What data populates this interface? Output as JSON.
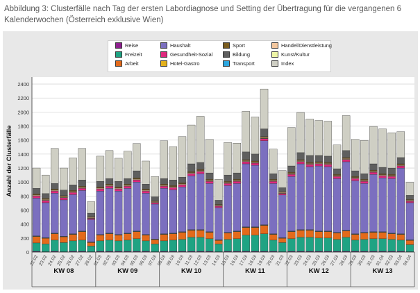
{
  "caption": "Abbildung 3: Clusterfälle nach Tag der ersten Labordiagnose und Setting der Übertragung für die vergangenen 6 Kalenderwochen (Österreich exklusive Wien)",
  "colors": {
    "Reise": "#8e1f8e",
    "Freizeit": "#1fa383",
    "Arbeit": "#e36a1b",
    "Haushalt": "#7b6fbf",
    "Gesundheit-Sozial": "#e0287d",
    "Hotel-Gastro": "#e3b11b",
    "Sport": "#7a5c1e",
    "Bildung": "#5f5f5f",
    "Transport": "#2ca7e0",
    "Handel/Dienstleistung": "#f3c79e",
    "Kunst/Kultur": "#eef5a6",
    "Index": "#cfcfc4"
  },
  "chart_data": {
    "type": "bar",
    "stacked": true,
    "ylabel": "Anzahl der Clusterfälle",
    "xlabel": "",
    "ylim": [
      0,
      2500
    ],
    "yticks": [
      0,
      200,
      400,
      600,
      800,
      1000,
      1200,
      1400,
      1600,
      1800,
      2000,
      2200,
      2400
    ],
    "legend_position": "top-center",
    "legend": [
      "Reise",
      "Haushalt",
      "Sport",
      "Handel/Dienstleistung",
      "Freizeit",
      "Gesundheit-Sozial",
      "Bildung",
      "Kunst/Kultur",
      "Arbeit",
      "Hotel-Gastro",
      "Transport",
      "Index"
    ],
    "stack_order": [
      "Reise",
      "Freizeit",
      "Arbeit",
      "Hotel-Gastro",
      "Transport",
      "Haushalt",
      "Gesundheit-Sozial",
      "Kunst/Kultur",
      "Handel/Dienstleistung",
      "Sport",
      "Bildung",
      "Index"
    ],
    "categories": [
      "22.02",
      "23.02",
      "24.02",
      "25.02",
      "26.02",
      "27.02",
      "28.02",
      "01.03",
      "02.03",
      "03.03",
      "04.03",
      "05.03",
      "06.03",
      "07.03",
      "08.03",
      "09.03",
      "10.03",
      "11.03",
      "12.03",
      "13.03",
      "14.03",
      "15.03",
      "16.03",
      "17.03",
      "18.03",
      "19.03",
      "20.03",
      "21.03",
      "22.03",
      "23.03",
      "24.03",
      "25.03",
      "26.03",
      "27.03",
      "28.03",
      "29.03",
      "30.03",
      "31.03",
      "01.04",
      "02.03",
      "03.04",
      "04.04"
    ],
    "weeks": [
      {
        "label": "KW 08",
        "start": 0,
        "end": 6
      },
      {
        "label": "KW 09",
        "start": 7,
        "end": 13
      },
      {
        "label": "KW 10",
        "start": 14,
        "end": 20
      },
      {
        "label": "KW 11",
        "start": 21,
        "end": 27
      },
      {
        "label": "KW 12",
        "start": 28,
        "end": 34
      },
      {
        "label": "KW 13",
        "start": 35,
        "end": 41
      }
    ],
    "series": [
      {
        "name": "Reise",
        "values": [
          10,
          5,
          10,
          5,
          10,
          10,
          5,
          10,
          10,
          10,
          10,
          10,
          10,
          5,
          10,
          10,
          10,
          10,
          10,
          10,
          5,
          10,
          10,
          10,
          10,
          10,
          10,
          5,
          10,
          10,
          10,
          10,
          10,
          10,
          10,
          10,
          10,
          10,
          10,
          10,
          10,
          5
        ]
      },
      {
        "name": "Freizeit",
        "values": [
          120,
          110,
          160,
          130,
          150,
          160,
          80,
          150,
          160,
          150,
          160,
          180,
          150,
          110,
          150,
          160,
          170,
          200,
          200,
          180,
          110,
          170,
          180,
          230,
          230,
          250,
          160,
          130,
          180,
          200,
          200,
          190,
          190,
          170,
          200,
          160,
          170,
          180,
          180,
          170,
          160,
          100
        ]
      },
      {
        "name": "Arbeit",
        "values": [
          90,
          80,
          90,
          80,
          90,
          120,
          50,
          80,
          90,
          80,
          90,
          100,
          80,
          60,
          90,
          90,
          100,
          100,
          100,
          90,
          50,
          90,
          100,
          110,
          110,
          120,
          80,
          60,
          100,
          100,
          100,
          90,
          90,
          90,
          90,
          80,
          90,
          90,
          90,
          80,
          80,
          60
        ]
      },
      {
        "name": "Hotel-Gastro",
        "values": [
          5,
          5,
          5,
          5,
          5,
          5,
          5,
          5,
          5,
          5,
          5,
          5,
          5,
          5,
          5,
          5,
          5,
          5,
          5,
          5,
          5,
          5,
          5,
          5,
          5,
          5,
          5,
          5,
          5,
          5,
          5,
          5,
          5,
          5,
          5,
          5,
          5,
          5,
          5,
          5,
          5,
          5
        ]
      },
      {
        "name": "Transport",
        "values": [
          5,
          5,
          5,
          5,
          5,
          5,
          5,
          5,
          5,
          5,
          5,
          5,
          5,
          5,
          5,
          5,
          5,
          5,
          5,
          5,
          5,
          5,
          5,
          5,
          5,
          5,
          5,
          5,
          5,
          5,
          5,
          5,
          5,
          5,
          5,
          5,
          5,
          5,
          5,
          5,
          5,
          5
        ]
      },
      {
        "name": "Haushalt",
        "values": [
          540,
          500,
          570,
          520,
          560,
          580,
          320,
          620,
          640,
          620,
          640,
          700,
          590,
          500,
          650,
          620,
          640,
          770,
          800,
          690,
          460,
          670,
          680,
          900,
          880,
          1200,
          720,
          610,
          780,
          940,
          900,
          930,
          920,
          770,
          980,
          760,
          700,
          820,
          770,
          780,
          940,
          530
        ]
      },
      {
        "name": "Gesundheit-Sozial",
        "values": [
          30,
          30,
          30,
          30,
          30,
          30,
          15,
          30,
          30,
          30,
          30,
          30,
          30,
          20,
          30,
          30,
          30,
          30,
          30,
          30,
          20,
          30,
          30,
          30,
          30,
          30,
          30,
          20,
          30,
          30,
          30,
          30,
          30,
          30,
          30,
          30,
          30,
          30,
          30,
          30,
          30,
          20
        ]
      },
      {
        "name": "Kunst/Kultur",
        "values": [
          5,
          5,
          5,
          5,
          5,
          5,
          5,
          5,
          5,
          5,
          5,
          5,
          5,
          5,
          5,
          5,
          5,
          5,
          5,
          5,
          5,
          5,
          5,
          5,
          5,
          5,
          5,
          5,
          5,
          5,
          5,
          5,
          5,
          5,
          5,
          5,
          5,
          5,
          5,
          5,
          5,
          5
        ]
      },
      {
        "name": "Handel/Dienstleistung",
        "values": [
          10,
          10,
          10,
          10,
          10,
          10,
          10,
          10,
          10,
          10,
          10,
          10,
          10,
          10,
          10,
          10,
          10,
          10,
          10,
          10,
          10,
          10,
          10,
          10,
          10,
          10,
          10,
          10,
          10,
          10,
          10,
          10,
          10,
          10,
          10,
          10,
          10,
          10,
          10,
          10,
          10,
          10
        ]
      },
      {
        "name": "Sport",
        "values": [
          15,
          15,
          15,
          15,
          15,
          15,
          10,
          15,
          15,
          15,
          15,
          15,
          15,
          10,
          15,
          15,
          15,
          15,
          15,
          15,
          10,
          15,
          15,
          15,
          15,
          15,
          15,
          10,
          15,
          15,
          15,
          15,
          15,
          15,
          15,
          15,
          15,
          15,
          15,
          15,
          15,
          10
        ]
      },
      {
        "name": "Bildung",
        "values": [
          80,
          70,
          80,
          80,
          80,
          90,
          50,
          80,
          80,
          80,
          80,
          100,
          70,
          60,
          80,
          80,
          80,
          110,
          100,
          90,
          60,
          90,
          90,
          110,
          100,
          110,
          80,
          60,
          90,
          100,
          100,
          90,
          90,
          80,
          100,
          80,
          80,
          90,
          90,
          90,
          90,
          60
        ]
      },
      {
        "name": "Index",
        "values": [
          290,
          265,
          500,
          315,
          385,
          450,
          165,
          360,
          400,
          330,
          390,
          390,
          330,
          290,
          540,
          475,
          580,
          555,
          660,
          480,
          300,
          465,
          425,
          580,
          530,
          570,
          350,
          245,
          550,
          575,
          520,
          500,
          500,
          340,
          500,
          450,
          475,
          535,
          550,
          505,
          370,
          185
        ]
      }
    ]
  }
}
